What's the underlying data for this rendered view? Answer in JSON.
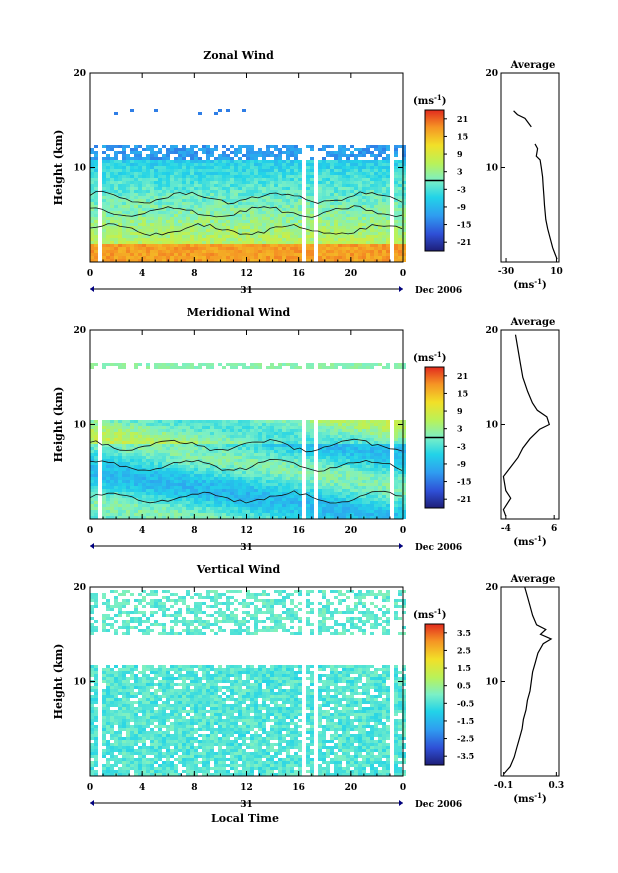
{
  "figure": {
    "xlabel_bottom": "Local Time",
    "date_label": "Dec 2006",
    "day_label": "31"
  },
  "chart_data": [
    {
      "type": "heatmap",
      "title": "Zonal Wind",
      "ylabel": "Height (km)",
      "x_ticks": [
        "0",
        "4",
        "8",
        "12",
        "16",
        "20",
        "0"
      ],
      "y_ticks": [
        "10",
        "20"
      ],
      "ylim": [
        0,
        20
      ],
      "xlim": [
        0,
        24
      ],
      "colorbar": {
        "unit": "(ms",
        "unit_sup": "-1",
        "unit_close": ")",
        "ticks": [
          "21",
          "15",
          "9",
          "3",
          "-3",
          "-9",
          "-15",
          "-21"
        ],
        "range": [
          -24,
          24
        ],
        "marker_value": 0
      },
      "field_summary": {
        "low_level_fast_westerly_top_km": 2.2,
        "data_top_km": 11.0,
        "sparse_top_km": 16.5
      },
      "average": {
        "title": "Average",
        "xlabel": "(ms",
        "xlabel_sup": "-1",
        "xlabel_close": ")",
        "x_ticks": [
          "-30",
          "10"
        ],
        "xlim": [
          -34,
          12
        ],
        "y_ticks": [
          "10",
          "20"
        ],
        "profile": [
          [
            10.5,
            0.3
          ],
          [
            9,
            0.8
          ],
          [
            7,
            1.5
          ],
          [
            5,
            2.5
          ],
          [
            3,
            3.5
          ],
          [
            1.5,
            4.5
          ],
          [
            0.5,
            6
          ],
          [
            0,
            7
          ],
          [
            -0.5,
            8
          ],
          [
            -1,
            9
          ],
          [
            -2,
            10
          ],
          [
            -3,
            10.8
          ],
          [
            -6,
            11.2
          ],
          [
            -5,
            12
          ],
          [
            -7,
            12.5
          ]
        ],
        "profile_upper": [
          [
            -10,
            14.3
          ],
          [
            -15,
            15.2
          ],
          [
            -21,
            15.6
          ],
          [
            -24,
            16
          ]
        ]
      }
    },
    {
      "type": "heatmap",
      "title": "Meridional Wind",
      "ylabel": "Height (km)",
      "x_ticks": [
        "0",
        "4",
        "8",
        "12",
        "16",
        "20",
        "0"
      ],
      "y_ticks": [
        "10",
        "20"
      ],
      "ylim": [
        0,
        20
      ],
      "xlim": [
        0,
        24
      ],
      "colorbar": {
        "unit": "(ms",
        "unit_sup": "-1",
        "unit_close": ")",
        "ticks": [
          "21",
          "15",
          "9",
          "3",
          "-3",
          "-9",
          "-15",
          "-21"
        ],
        "range": [
          -24,
          24
        ],
        "marker_value": 0
      },
      "field_summary": {
        "data_top_km": 10.5,
        "upper_band_km": 16.5
      },
      "average": {
        "title": "Average",
        "xlabel": "(ms",
        "xlabel_sup": "-1",
        "xlabel_close": ")",
        "x_ticks": [
          "-4",
          "6"
        ],
        "xlim": [
          -5,
          7
        ],
        "y_ticks": [
          "10",
          "20"
        ],
        "profile": [
          [
            -4,
            0.3
          ],
          [
            -4.5,
            1
          ],
          [
            -3,
            2.2
          ],
          [
            -4,
            3
          ],
          [
            -4.5,
            4.5
          ],
          [
            -3,
            5.5
          ],
          [
            -1.5,
            6.5
          ],
          [
            -0.5,
            7.5
          ],
          [
            1,
            8.5
          ],
          [
            3,
            9.5
          ],
          [
            5,
            10
          ],
          [
            4.5,
            10.8
          ],
          [
            2.5,
            11.5
          ],
          [
            1.5,
            12.3
          ],
          [
            0.5,
            13.5
          ],
          [
            -0.5,
            15
          ],
          [
            -1,
            16.5
          ],
          [
            -1.5,
            18
          ],
          [
            -2,
            19.5
          ]
        ],
        "profile_upper": []
      }
    },
    {
      "type": "heatmap",
      "title": "Vertical Wind",
      "ylabel": "Height (km)",
      "x_ticks": [
        "0",
        "4",
        "8",
        "12",
        "16",
        "20",
        "0"
      ],
      "y_ticks": [
        "10",
        "20"
      ],
      "ylim": [
        0,
        20
      ],
      "xlim": [
        0,
        24
      ],
      "colorbar": {
        "unit": "(ms",
        "unit_sup": "-1",
        "unit_close": ")",
        "ticks": [
          "3.5",
          "2.5",
          "1.5",
          "0.5",
          "-0.5",
          "-1.5",
          "-2.5",
          "-3.5"
        ],
        "range": [
          -4,
          4
        ],
        "marker_value": null
      },
      "field_summary": {
        "data_top_km": 20.0,
        "gap_km": [
          15.0,
          12.0
        ]
      },
      "average": {
        "title": "Average",
        "xlabel": "(ms",
        "xlabel_sup": "-1",
        "xlabel_close": ")",
        "x_ticks": [
          "-0.1",
          "0.3"
        ],
        "xlim": [
          -0.12,
          0.32
        ],
        "y_ticks": [
          "10",
          "20"
        ],
        "profile": [
          [
            -0.1,
            0.2
          ],
          [
            -0.05,
            1
          ],
          [
            -0.02,
            2
          ],
          [
            0.0,
            3
          ],
          [
            0.02,
            4
          ],
          [
            0.04,
            5
          ],
          [
            0.05,
            6
          ],
          [
            0.07,
            7
          ],
          [
            0.08,
            8
          ],
          [
            0.1,
            9
          ],
          [
            0.11,
            10
          ],
          [
            0.12,
            11
          ],
          [
            0.14,
            12
          ],
          [
            0.16,
            13
          ],
          [
            0.2,
            14
          ],
          [
            0.26,
            14.5
          ],
          [
            0.18,
            15
          ],
          [
            0.22,
            15.5
          ],
          [
            0.15,
            16
          ],
          [
            0.12,
            17
          ],
          [
            0.1,
            18
          ],
          [
            0.08,
            19
          ],
          [
            0.06,
            20
          ]
        ],
        "profile_upper": []
      }
    }
  ]
}
